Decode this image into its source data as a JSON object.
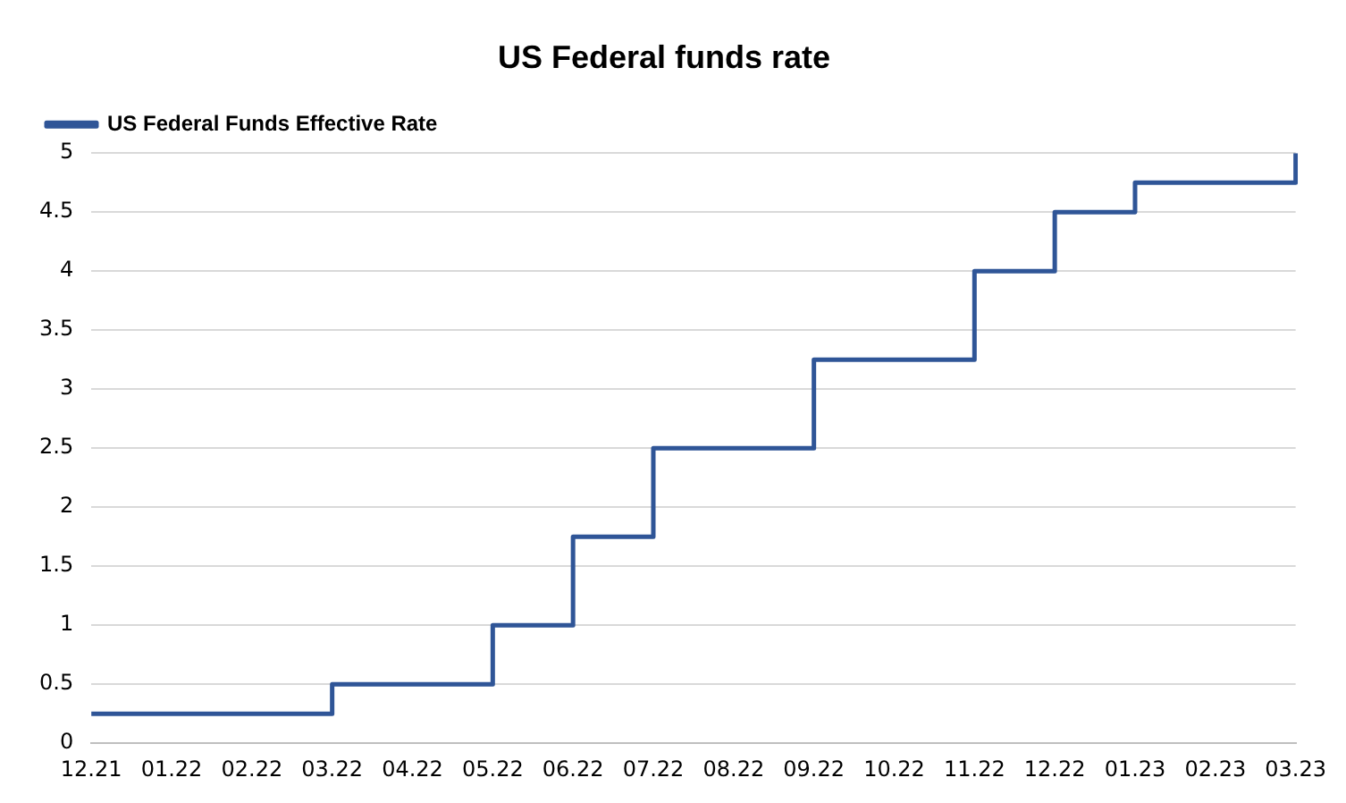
{
  "chart_data": {
    "type": "step",
    "title": "US Federal funds rate",
    "categories": [
      "12.21",
      "01.22",
      "02.22",
      "03.22",
      "04.22",
      "05.22",
      "06.22",
      "07.22",
      "08.22",
      "09.22",
      "10.22",
      "11.22",
      "12.22",
      "01.23",
      "02.23",
      "03.23"
    ],
    "series": [
      {
        "name": "US Federal Funds Effective Rate",
        "color": "#2f5597",
        "values": [
          0.25,
          0.25,
          0.25,
          0.5,
          0.5,
          1,
          1.75,
          2.5,
          2.5,
          3.25,
          3.25,
          4,
          4.5,
          4.75,
          4.75,
          5
        ]
      }
    ],
    "ylim": [
      0,
      5
    ],
    "yticks": [
      0,
      0.5,
      1,
      1.5,
      2,
      2.5,
      3,
      3.5,
      4,
      4.5,
      5
    ],
    "grid": "y",
    "legend": "top left"
  }
}
